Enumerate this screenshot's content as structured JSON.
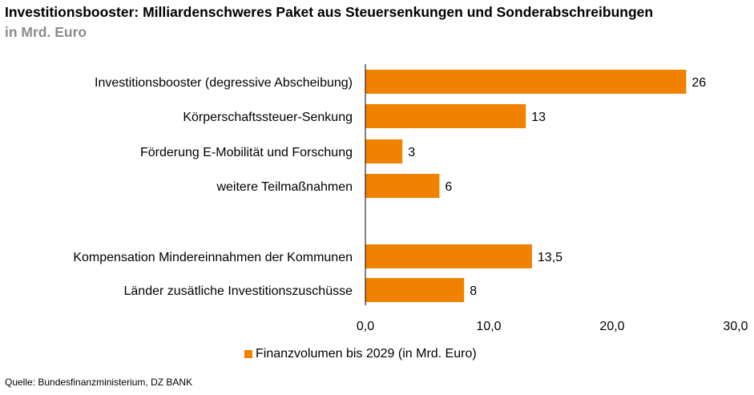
{
  "title": "Investitionsbooster: Milliardenschweres Paket aus Steuersenkungen und Sonderabschreibungen",
  "subtitle": "in Mrd. Euro",
  "source": "Quelle: Bundesfinanzministerium, DZ BANK",
  "legend": {
    "label": "Finanzvolumen bis 2029 (in Mrd. Euro)"
  },
  "colors": {
    "bar": "#F08200",
    "axis": "#000000"
  },
  "chart_data": {
    "type": "bar",
    "orientation": "horizontal",
    "title": "Investitionsbooster: Milliardenschweres Paket aus Steuersenkungen und Sonderabschreibungen",
    "subtitle": "in Mrd. Euro",
    "xlabel": "",
    "ylabel": "",
    "xlim": [
      0,
      30
    ],
    "xticks": [
      0,
      10,
      20,
      30
    ],
    "xtick_labels": [
      "0,0",
      "10,0",
      "20,0",
      "30,0"
    ],
    "grid": false,
    "legend_position": "bottom",
    "categories": [
      "Investitionsbooster (degressive Abscheibung)",
      "Körperschaftssteuer-Senkung",
      "Förderung E-Mobilität und Forschung",
      "weitere Teilmaßnahmen",
      "",
      "Kompensation Mindereinnahmen der Kommunen",
      "Länder zusätliche Investitionszuschüsse"
    ],
    "series": [
      {
        "name": "Finanzvolumen bis 2029 (in Mrd. Euro)",
        "values": [
          26,
          13,
          3,
          6,
          null,
          13.5,
          8
        ],
        "value_labels": [
          "26",
          "13",
          "3",
          "6",
          "",
          "13,5",
          "8"
        ]
      }
    ]
  }
}
